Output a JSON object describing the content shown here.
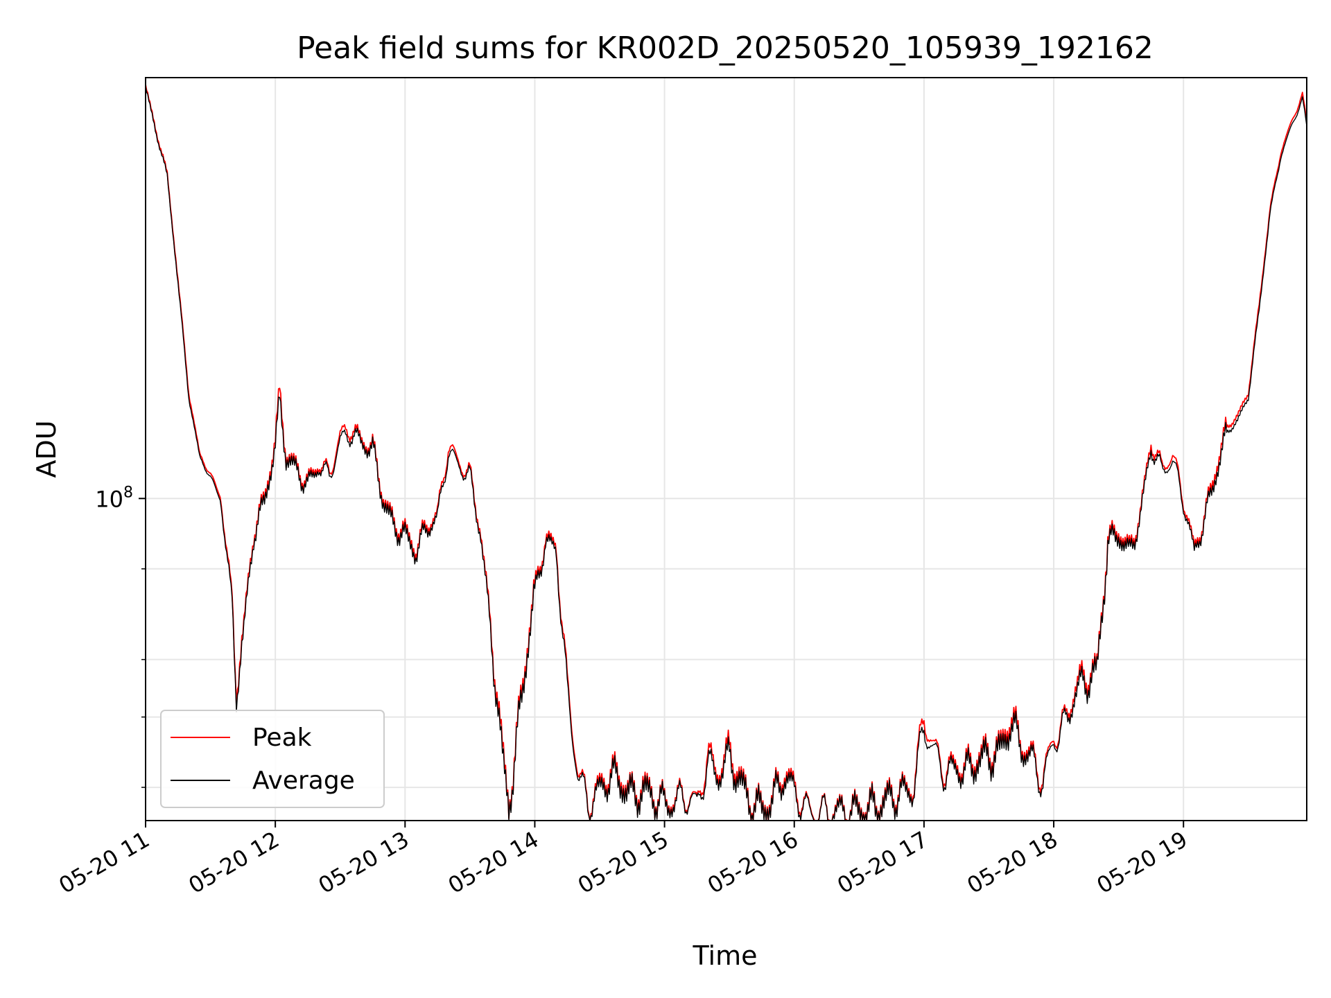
{
  "chart_data": {
    "type": "line",
    "title": "Peak field sums for KR002D_20250520_105939_192162",
    "xlabel": "Time",
    "ylabel": "ADU",
    "x_ticks": [
      "05-20 11",
      "05-20 12",
      "05-20 13",
      "05-20 14",
      "05-20 15",
      "05-20 16",
      "05-20 17",
      "05-20 18",
      "05-20 19"
    ],
    "x_range": [
      "2025-05-20 11:00",
      "2025-05-20 19:57"
    ],
    "y_scale": "log",
    "y_major_tick": {
      "label": "10",
      "exponent": "8",
      "value": 100000000
    },
    "y_minor_ticks": [
      40000000,
      50000000,
      60000000,
      80000000
    ],
    "ylim": [
      36000000,
      380000000
    ],
    "grid": true,
    "legend_position": "lower-left",
    "colors": {
      "peak": "#ff0000",
      "average": "#000000",
      "grid": "#e6e6e6"
    },
    "x_times": [
      "11:00",
      "11:05",
      "11:10",
      "11:15",
      "11:20",
      "11:25",
      "11:30",
      "11:35",
      "11:40",
      "11:42",
      "11:45",
      "11:50",
      "11:55",
      "12:00",
      "12:02",
      "12:05",
      "12:10",
      "12:15",
      "12:20",
      "12:25",
      "12:30",
      "12:35",
      "12:40",
      "12:45",
      "12:50",
      "12:55",
      "13:00",
      "13:05",
      "13:10",
      "13:15",
      "13:20",
      "13:25",
      "13:30",
      "13:35",
      "13:40",
      "13:45",
      "13:48",
      "13:50",
      "13:55",
      "14:00",
      "14:05",
      "14:10",
      "14:15",
      "14:20",
      "14:25",
      "14:30",
      "14:35",
      "14:40",
      "14:45",
      "14:50",
      "14:55",
      "15:00",
      "15:05",
      "15:10",
      "15:15",
      "15:20",
      "15:25",
      "15:30",
      "15:35",
      "15:40",
      "15:45",
      "15:50",
      "15:55",
      "16:00",
      "16:05",
      "16:10",
      "16:15",
      "16:20",
      "16:25",
      "16:30",
      "16:35",
      "16:40",
      "16:45",
      "16:50",
      "16:55",
      "17:00",
      "17:05",
      "17:10",
      "17:15",
      "17:20",
      "17:25",
      "17:30",
      "17:35",
      "17:40",
      "17:45",
      "17:50",
      "17:55",
      "18:00",
      "18:05",
      "18:10",
      "18:15",
      "18:20",
      "18:25",
      "18:30",
      "18:35",
      "18:40",
      "18:45",
      "18:50",
      "18:55",
      "19:00",
      "19:05",
      "19:10",
      "19:15",
      "19:20",
      "19:25",
      "19:30",
      "19:35",
      "19:40",
      "19:45",
      "19:50",
      "19:55",
      "19:57"
    ],
    "series": [
      {
        "name": "Peak",
        "values": [
          370000000,
          320000000,
          280000000,
          200000000,
          140000000,
          115000000,
          108000000,
          100000000,
          72000000,
          55000000,
          65000000,
          90000000,
          100000000,
          120000000,
          140000000,
          115000000,
          110000000,
          105000000,
          112000000,
          108000000,
          122000000,
          125000000,
          120000000,
          118000000,
          100000000,
          92000000,
          90000000,
          85000000,
          92000000,
          95000000,
          118000000,
          112000000,
          108000000,
          90000000,
          65000000,
          45000000,
          38000000,
          42000000,
          58000000,
          75000000,
          88000000,
          86000000,
          55000000,
          42000000,
          38000000,
          40000000,
          42000000,
          41000000,
          39000000,
          40000000,
          39000000,
          38000000,
          38500000,
          39000000,
          38000000,
          44000000,
          42000000,
          45000000,
          41000000,
          38000000,
          37500000,
          38500000,
          42000000,
          40000000,
          37500000,
          37000000,
          37000000,
          37200000,
          37000000,
          37300000,
          37500000,
          38000000,
          39000000,
          39500000,
          40000000,
          50000000,
          45000000,
          42000000,
          43000000,
          42500000,
          44000000,
          44500000,
          45000000,
          50000000,
          46000000,
          44000000,
          41000000,
          47000000,
          49000000,
          55000000,
          57000000,
          58000000,
          88000000,
          90000000,
          85000000,
          95000000,
          120000000,
          110000000,
          115000000,
          100000000,
          85000000,
          95000000,
          110000000,
          125000000,
          130000000,
          140000000,
          185000000,
          250000000,
          300000000,
          330000000,
          360000000,
          330000000
        ]
      },
      {
        "name": "Average",
        "values": [
          368000000,
          318000000,
          278000000,
          198000000,
          138000000,
          114000000,
          107000000,
          99000000,
          71000000,
          54000000,
          64000000,
          89000000,
          99000000,
          118000000,
          136000000,
          114000000,
          109000000,
          104000000,
          111000000,
          107000000,
          120000000,
          123000000,
          119000000,
          117000000,
          99000000,
          91000000,
          89000000,
          84000000,
          91000000,
          94000000,
          116000000,
          111000000,
          107000000,
          89000000,
          64000000,
          44000000,
          37800000,
          41500000,
          57000000,
          74000000,
          87000000,
          85000000,
          54000000,
          41500000,
          37800000,
          39500000,
          41500000,
          40500000,
          38800000,
          39500000,
          38800000,
          37800000,
          38200000,
          38800000,
          37800000,
          43000000,
          41500000,
          44000000,
          40500000,
          37800000,
          37300000,
          38200000,
          41500000,
          39500000,
          37300000,
          36900000,
          36900000,
          37000000,
          36900000,
          37100000,
          37300000,
          37800000,
          38700000,
          39200000,
          39700000,
          48500000,
          44500000,
          41500000,
          42500000,
          42000000,
          43500000,
          44000000,
          44500000,
          49000000,
          45500000,
          43500000,
          40500000,
          46500000,
          48500000,
          54000000,
          56000000,
          57500000,
          87000000,
          89000000,
          84000000,
          94000000,
          118000000,
          109000000,
          113000000,
          99000000,
          84000000,
          94000000,
          108000000,
          123000000,
          128000000,
          138000000,
          182000000,
          247000000,
          296000000,
          326000000,
          355000000,
          326000000
        ]
      }
    ]
  }
}
